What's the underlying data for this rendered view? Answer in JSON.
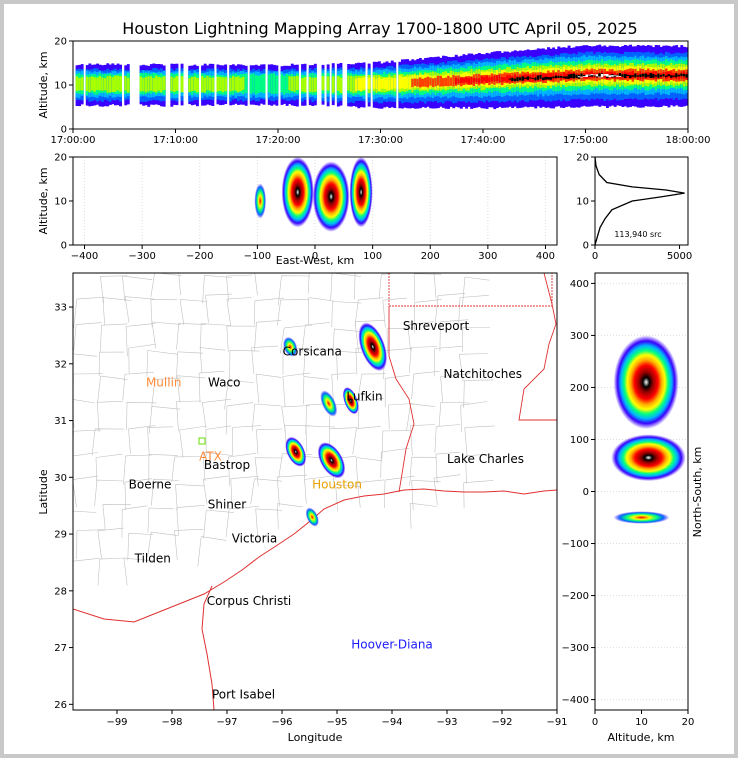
{
  "title": "Houston Lightning Mapping Array 1700-1800 UTC April 05, 2025",
  "colors": {
    "density_scale": [
      "#3a00ff",
      "#0066ff",
      "#00b4ff",
      "#00ff80",
      "#a8ff00",
      "#ffff00",
      "#ffb000",
      "#ff4000",
      "#ff0000",
      "#9a0000",
      "#000000",
      "#ffffff"
    ],
    "coastline": "#e03030",
    "state_border": "#e03030",
    "county_lines": "#c0c0c0",
    "station_orange": "#ff8c3a",
    "station_gold": "#e8a000",
    "station_blue": "#1a1aff"
  },
  "chart_data": [
    {
      "panel": "altitude-time",
      "type": "heatmap",
      "ylabel": "Altitude, km",
      "xlabel": "",
      "xlim": [
        "17:00:00",
        "18:00:00"
      ],
      "ylim": [
        0,
        20
      ],
      "yticks": [
        "0",
        "10",
        "20"
      ],
      "xticks": [
        "17:00:00",
        "17:10:00",
        "17:20:00",
        "17:30:00",
        "17:40:00",
        "17:50:00",
        "18:00:00"
      ],
      "activity": [
        {
          "t": "17:00",
          "alt": 10,
          "density": 0.3
        },
        {
          "t": "17:10",
          "alt": 10,
          "density": 0.3
        },
        {
          "t": "17:20",
          "alt": 10,
          "density": 0.25
        },
        {
          "t": "17:30",
          "alt": 10,
          "density": 0.45
        },
        {
          "t": "17:40",
          "alt": 11,
          "density": 0.75
        },
        {
          "t": "17:50",
          "alt": 12,
          "density": 0.95
        },
        {
          "t": "18:00",
          "alt": 12,
          "density": 0.9
        }
      ]
    },
    {
      "panel": "altitude-east-west",
      "type": "heatmap",
      "xlabel": "East-West, km",
      "ylabel": "Altitude, km",
      "xlim": [
        -420,
        420
      ],
      "ylim": [
        0,
        20
      ],
      "xticks": [
        "−400",
        "−300",
        "−200",
        "−100",
        "0",
        "100",
        "200",
        "300",
        "400"
      ],
      "yticks": [
        "0",
        "10",
        "20"
      ],
      "clusters": [
        {
          "x": -95,
          "alt": 10,
          "rx": 10,
          "ra": 4,
          "density": 0.35
        },
        {
          "x": -30,
          "alt": 12,
          "rx": 28,
          "ra": 8,
          "density": 1.0
        },
        {
          "x": 28,
          "alt": 11,
          "rx": 32,
          "ra": 8,
          "density": 1.0
        },
        {
          "x": 80,
          "alt": 12,
          "rx": 20,
          "ra": 8,
          "density": 0.7
        }
      ]
    },
    {
      "panel": "altitude-histogram",
      "type": "line",
      "xlabel": "",
      "xlim": [
        0,
        5500
      ],
      "ylim": [
        0,
        20
      ],
      "xticks": [
        "0",
        "5000"
      ],
      "yticks": [
        "0",
        "10",
        "20"
      ],
      "annotation": "113,940 src",
      "points": [
        [
          0,
          0
        ],
        [
          150,
          2
        ],
        [
          300,
          4
        ],
        [
          600,
          6
        ],
        [
          1000,
          8
        ],
        [
          2200,
          10
        ],
        [
          4000,
          11
        ],
        [
          5300,
          11.8
        ],
        [
          4200,
          12.5
        ],
        [
          2200,
          13.2
        ],
        [
          700,
          14.2
        ],
        [
          250,
          16
        ],
        [
          60,
          18
        ],
        [
          0,
          20
        ]
      ]
    },
    {
      "panel": "plan-view",
      "type": "scatter",
      "xlabel": "Longitude",
      "ylabel": "Latitude",
      "xlim": [
        -99.8,
        -91
      ],
      "ylim": [
        25.9,
        33.6
      ],
      "xticks": [
        "−99",
        "−98",
        "−97",
        "−96",
        "−95",
        "−94",
        "−93",
        "−92",
        "−91"
      ],
      "yticks": [
        "26",
        "27",
        "28",
        "29",
        "30",
        "31",
        "32",
        "33"
      ],
      "places": [
        {
          "name": "Shreveport",
          "lon": -93.2,
          "lat": 32.6,
          "color": "#000000"
        },
        {
          "name": "Corsicana",
          "lon": -95.45,
          "lat": 32.15,
          "color": "#000000"
        },
        {
          "name": "Mullin",
          "lon": -98.15,
          "lat": 31.6,
          "color": "#ff8c3a"
        },
        {
          "name": "Waco",
          "lon": -97.05,
          "lat": 31.6,
          "color": "#000000"
        },
        {
          "name": "Natchitoches",
          "lon": -92.35,
          "lat": 31.75,
          "color": "#000000"
        },
        {
          "name": "Lufkin",
          "lon": -94.5,
          "lat": 31.35,
          "color": "#000000"
        },
        {
          "name": "ATX",
          "lon": -97.3,
          "lat": 30.3,
          "color": "#ff8c3a"
        },
        {
          "name": "Bastrop",
          "lon": -97.0,
          "lat": 30.15,
          "color": "#000000"
        },
        {
          "name": "Lake Charles",
          "lon": -92.3,
          "lat": 30.25,
          "color": "#000000"
        },
        {
          "name": "Boerne",
          "lon": -98.4,
          "lat": 29.8,
          "color": "#000000"
        },
        {
          "name": "Houston",
          "lon": -95.0,
          "lat": 29.8,
          "color": "#e8a000"
        },
        {
          "name": "Shiner",
          "lon": -97.0,
          "lat": 29.45,
          "color": "#000000"
        },
        {
          "name": "Victoria",
          "lon": -96.5,
          "lat": 28.85,
          "color": "#000000"
        },
        {
          "name": "Tilden",
          "lon": -98.35,
          "lat": 28.5,
          "color": "#000000"
        },
        {
          "name": "Corpus Christi",
          "lon": -96.6,
          "lat": 27.75,
          "color": "#000000"
        },
        {
          "name": "Hoover-Diana",
          "lon": -94.0,
          "lat": 26.98,
          "color": "#1a1aff"
        },
        {
          "name": "Port Isabel",
          "lon": -96.7,
          "lat": 26.1,
          "color": "#000000"
        }
      ],
      "storm_cells": [
        {
          "lon": -95.75,
          "lat": 30.45,
          "rx": 0.16,
          "ry": 0.28,
          "rot": -25,
          "density": 1.0
        },
        {
          "lon": -95.1,
          "lat": 30.3,
          "rx": 0.2,
          "ry": 0.35,
          "rot": -30,
          "density": 1.0
        },
        {
          "lon": -94.75,
          "lat": 31.35,
          "rx": 0.12,
          "ry": 0.25,
          "rot": -20,
          "density": 0.8
        },
        {
          "lon": -94.35,
          "lat": 32.3,
          "rx": 0.22,
          "ry": 0.45,
          "rot": -20,
          "density": 0.7
        },
        {
          "lon": -95.15,
          "lat": 31.3,
          "rx": 0.12,
          "ry": 0.25,
          "rot": -25,
          "density": 0.6
        },
        {
          "lon": -95.85,
          "lat": 32.3,
          "rx": 0.12,
          "ry": 0.18,
          "rot": -20,
          "density": 0.4
        },
        {
          "lon": -95.45,
          "lat": 29.3,
          "rx": 0.1,
          "ry": 0.18,
          "rot": -25,
          "density": 0.4
        }
      ]
    },
    {
      "panel": "north-south-altitude",
      "type": "heatmap",
      "xlabel": "Altitude, km",
      "ylabel": "North-South, km",
      "xlim": [
        0,
        20
      ],
      "ylim": [
        -420,
        420
      ],
      "xticks": [
        "0",
        "10",
        "20"
      ],
      "yticks": [
        "−400",
        "−300",
        "−200",
        "−100",
        "0",
        "100",
        "200",
        "300",
        "400"
      ],
      "clusters": [
        {
          "alt": 11,
          "ns": 210,
          "ra": 7,
          "rn": 90,
          "density": 0.7
        },
        {
          "alt": 11.5,
          "ns": 65,
          "ra": 8,
          "rn": 45,
          "density": 1.0
        },
        {
          "alt": 10,
          "ns": -50,
          "ra": 6,
          "rn": 12,
          "density": 0.4
        }
      ]
    }
  ]
}
